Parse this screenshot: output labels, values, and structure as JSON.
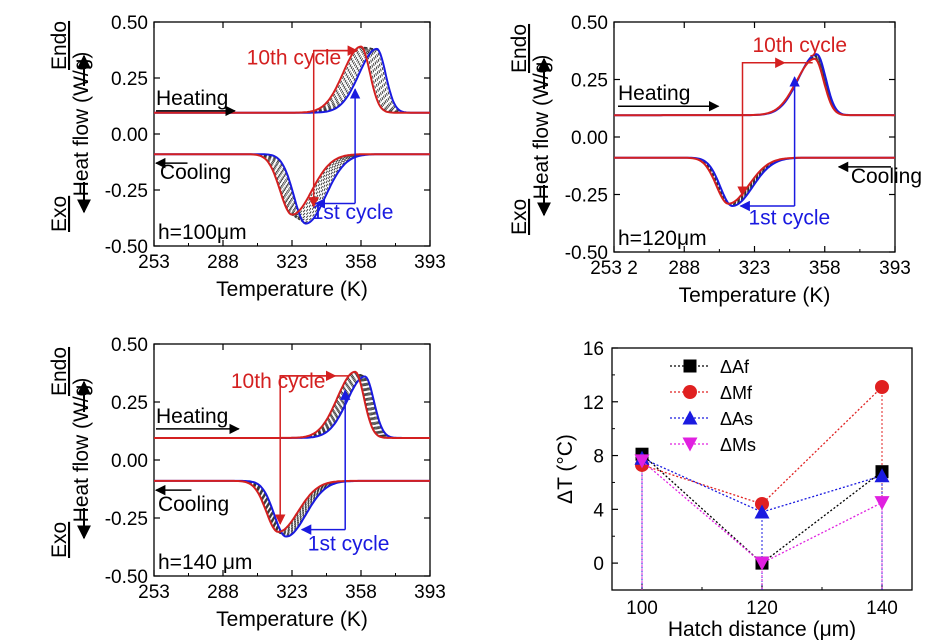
{
  "colors": {
    "red": "#d42020",
    "blue": "#1a1ae0",
    "magenta": "#e020e0",
    "black": "#000000",
    "dashed": "#333333"
  },
  "chart_data": [
    {
      "type": "line",
      "xlabel": "Temperature (K)",
      "ylabel_top": "Endo",
      "ylabel_bottom": "Exo",
      "ylabel": "Heat flow (W/g)",
      "xlim": [
        253,
        393
      ],
      "ylim": [
        -0.5,
        0.5
      ],
      "xticks": [
        "253",
        "288",
        "323",
        "358",
        "393"
      ],
      "yticks": [
        "0.50",
        "0.25",
        "0.00",
        "-0.25",
        "-0.50"
      ],
      "annotations": {
        "tenth": "10th cycle",
        "first": "1st cycle",
        "heating": "Heating",
        "cooling": "Cooling",
        "hatch": "h=100μm"
      },
      "heating_peaks": {
        "first": [
          366,
          0.38
        ],
        "tenth": [
          358,
          0.39
        ]
      },
      "cooling_peaks": {
        "first": [
          330,
          -0.4
        ],
        "tenth": [
          323,
          -0.36
        ]
      }
    },
    {
      "type": "line",
      "xlabel": "Temperature (K)",
      "ylabel_top": "Endo",
      "ylabel_bottom": "Exo",
      "ylabel": "Heat flow (W/g)",
      "xlim": [
        253,
        393
      ],
      "ylim": [
        -0.5,
        0.5
      ],
      "xticks": [
        "253 2",
        "288",
        "323",
        "358",
        "393"
      ],
      "yticks": [
        "0.50",
        "0.25",
        "0.00",
        "-0.25",
        "-0.50"
      ],
      "annotations": {
        "tenth": "10th cycle",
        "first": "1st cycle",
        "heating": "Heating",
        "cooling": "Cooling",
        "hatch": "h=120μm"
      },
      "heating_peaks": {
        "first": [
          354,
          0.36
        ],
        "tenth": [
          353,
          0.34
        ]
      },
      "cooling_peaks": {
        "first": [
          312,
          -0.3
        ],
        "tenth": [
          310,
          -0.29
        ]
      }
    },
    {
      "type": "line",
      "xlabel": "Temperature (K)",
      "ylabel_top": "Endo",
      "ylabel_bottom": "Exo",
      "ylabel": "Heat flow (W/g)",
      "xlim": [
        253,
        393
      ],
      "ylim": [
        -0.5,
        0.5
      ],
      "xticks": [
        "253",
        "288",
        "323",
        "358",
        "393"
      ],
      "yticks": [
        "0.50",
        "0.25",
        "0.00",
        "-0.25",
        "-0.50"
      ],
      "annotations": {
        "tenth": "10th cycle",
        "first": "1st cycle",
        "heating": "Heating",
        "cooling": "Cooling",
        "hatch": "h=140 μm"
      },
      "heating_peaks": {
        "first": [
          360,
          0.36
        ],
        "tenth": [
          355,
          0.38
        ]
      },
      "cooling_peaks": {
        "first": [
          320,
          -0.33
        ],
        "tenth": [
          316,
          -0.31
        ]
      }
    },
    {
      "type": "scatter",
      "xlabel": "Hatch distance (μm)",
      "ylabel": "ΔT (°C)",
      "xlim": [
        95,
        145
      ],
      "ylim": [
        -2,
        16
      ],
      "xticks": [
        100,
        120,
        140
      ],
      "yticks": [
        0,
        4,
        8,
        12,
        16
      ],
      "x": [
        100,
        120,
        140
      ],
      "series": [
        {
          "name": "ΔAf",
          "marker": "square",
          "color": "#000000",
          "values": [
            8.1,
            0.0,
            6.8
          ]
        },
        {
          "name": "ΔMf",
          "marker": "circle",
          "color": "#e02020",
          "values": [
            7.3,
            4.4,
            13.1
          ]
        },
        {
          "name": "ΔAs",
          "marker": "triangle-up",
          "color": "#1a1ae0",
          "values": [
            7.8,
            3.8,
            6.5
          ]
        },
        {
          "name": "ΔMs",
          "marker": "triangle-down",
          "color": "#e020e0",
          "values": [
            7.6,
            0.0,
            4.5
          ]
        }
      ]
    }
  ]
}
